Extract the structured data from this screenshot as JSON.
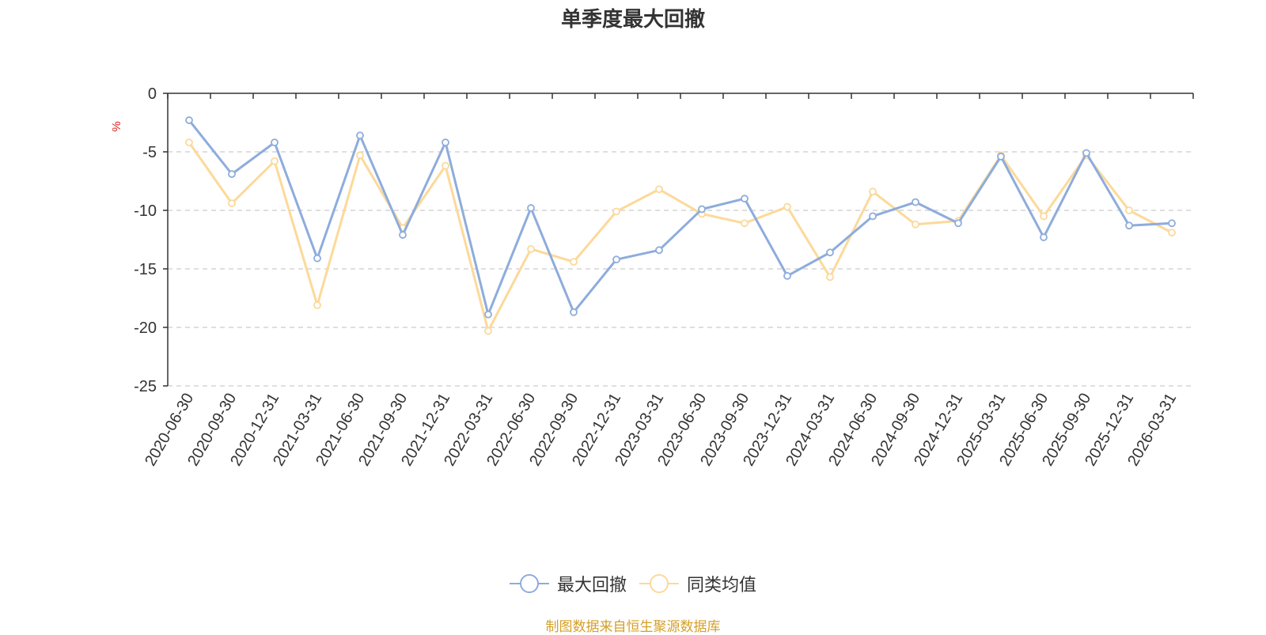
{
  "chart_data": {
    "type": "line",
    "title": "单季度最大回撤",
    "ylabel": "%",
    "ylim": [
      -25,
      0
    ],
    "yticks": [
      0,
      -5,
      -10,
      -15,
      -20,
      -25
    ],
    "grid": true,
    "legend_position": "bottom",
    "categories": [
      "2020-06-30",
      "2020-09-30",
      "2020-12-31",
      "2021-03-31",
      "2021-06-30",
      "2021-09-30",
      "2021-12-31",
      "2022-03-31",
      "2022-06-30",
      "2022-09-30",
      "2022-12-31",
      "2023-03-31",
      "2023-06-30",
      "2023-09-30",
      "2023-12-31",
      "2024-03-31",
      "2024-06-30",
      "2024-09-30",
      "2024-12-31",
      "2025-03-31",
      "2025-06-30",
      "2025-09-30",
      "2025-12-31",
      "2026-03-31"
    ],
    "series": [
      {
        "name": "最大回撤",
        "color": "#8eacdc",
        "values": [
          -2.3,
          -6.9,
          -4.2,
          -14.1,
          -3.6,
          -12.1,
          -4.2,
          -18.9,
          -9.8,
          -18.7,
          -14.2,
          -13.4,
          -9.9,
          -9.0,
          -15.6,
          -13.6,
          -10.5,
          -9.3,
          -11.1,
          -5.4,
          -12.3,
          -5.1,
          -11.3,
          -11.1
        ]
      },
      {
        "name": "同类均值",
        "color": "#fcd99a",
        "values": [
          -4.2,
          -9.4,
          -5.8,
          -18.1,
          -5.3,
          -11.5,
          -6.2,
          -20.3,
          -13.3,
          -14.4,
          -10.1,
          -8.2,
          -10.3,
          -11.1,
          -9.7,
          -15.7,
          -8.4,
          -11.2,
          -10.9,
          -5.3,
          -10.5,
          -5.3,
          -10.0,
          -11.9
        ]
      }
    ]
  },
  "source_text": "制图数据来自恒生聚源数据库"
}
